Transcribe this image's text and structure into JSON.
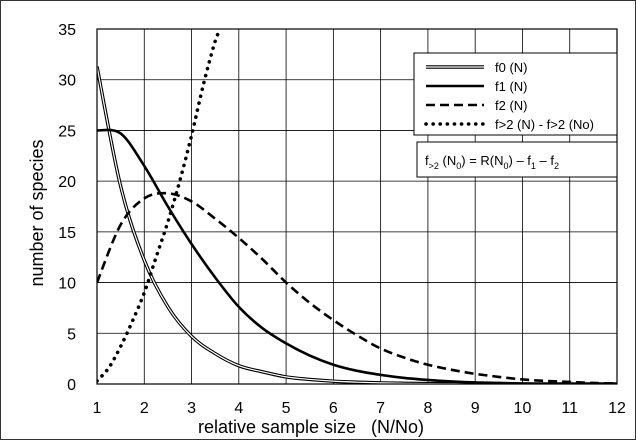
{
  "chart_data": {
    "type": "line",
    "xlabel": "relative sample size   (N/No)",
    "ylabel": "number of species",
    "xlim": [
      1,
      12
    ],
    "ylim": [
      0,
      35
    ],
    "x_ticks": [
      "1",
      "2",
      "3",
      "4",
      "5",
      "6",
      "7",
      "8",
      "9",
      "10",
      "11",
      "12"
    ],
    "y_ticks": [
      "0",
      "5",
      "10",
      "15",
      "20",
      "25",
      "30",
      "35"
    ],
    "grid": true,
    "legend_position": "top-right",
    "x": [
      1,
      1.5,
      2,
      2.5,
      3,
      3.5,
      4,
      4.5,
      5,
      5.5,
      6,
      6.5,
      7,
      7.5,
      8,
      8.5,
      9,
      9.5,
      10,
      10.5,
      11,
      11.5,
      12
    ],
    "series": [
      {
        "name": "f0 (N)",
        "style": "double",
        "values": [
          31.3,
          19.5,
          12.2,
          7.6,
          4.7,
          3.0,
          1.8,
          1.2,
          0.7,
          0.45,
          0.28,
          0.18,
          0.11,
          0.07,
          0.04,
          0.03,
          0.02,
          0.01,
          0.0,
          0.0,
          0.0,
          0.0,
          0.0
        ]
      },
      {
        "name": "f1 (N)",
        "style": "solid",
        "values": [
          25.0,
          24.7,
          21.5,
          17.5,
          13.8,
          10.5,
          7.6,
          5.5,
          4.0,
          2.8,
          1.9,
          1.3,
          0.9,
          0.6,
          0.4,
          0.25,
          0.15,
          0.1,
          0.05,
          0.0,
          0.0,
          0.0,
          0.0
        ]
      },
      {
        "name": "f2 (N)",
        "style": "dashed",
        "values": [
          10.0,
          15.7,
          18.3,
          18.8,
          18.0,
          16.3,
          14.4,
          12.3,
          10.0,
          8.0,
          6.3,
          4.8,
          3.5,
          2.6,
          1.9,
          1.4,
          1.0,
          0.7,
          0.45,
          0.3,
          0.2,
          0.1,
          0.05
        ]
      },
      {
        "name": "f>2 (N) - f>2 (No)",
        "style": "dotted",
        "x": [
          1,
          1.25,
          1.5,
          1.75,
          2,
          2.25,
          2.5,
          2.75,
          3,
          3.25,
          3.5,
          3.62
        ],
        "values": [
          0.3,
          1.6,
          3.7,
          6.2,
          9.0,
          12.5,
          16.0,
          20.0,
          24.5,
          29.5,
          33.8,
          35.0
        ]
      }
    ],
    "formula": {
      "lead": "f",
      "lead_sub": ">2",
      "arg": " (N",
      "arg_sub": "0",
      "mid": ") = R(N",
      "mid_sub": "0",
      "tail1": ") – f",
      "tail1_sub": "1",
      "tail2": " – f",
      "tail2_sub": "2"
    }
  }
}
